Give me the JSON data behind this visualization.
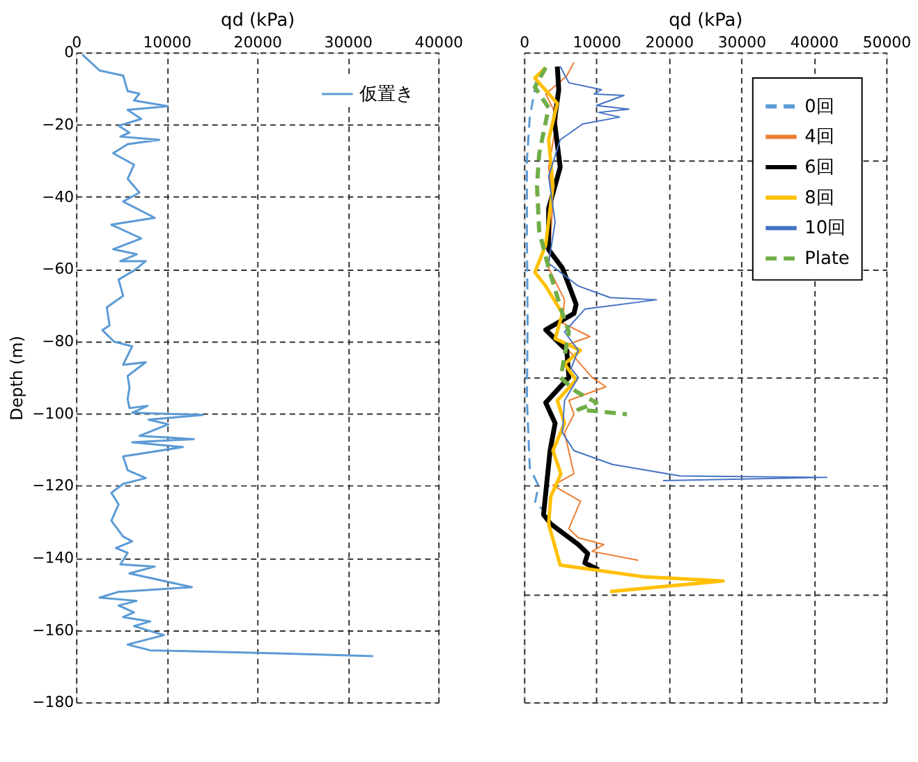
{
  "chart_data": [
    {
      "type": "line",
      "xlabel": "qd (kPa)",
      "ylabel": "Depth (m)",
      "xlim": [
        0,
        40000
      ],
      "xticks": [
        0,
        10000,
        20000,
        30000,
        40000
      ],
      "ylim": [
        -180,
        0
      ],
      "yticks": [
        -180,
        -160,
        -140,
        -120,
        -100,
        -80,
        -60,
        -40,
        -20,
        0
      ],
      "grid": true,
      "legend": "top right",
      "series": [
        {
          "name": "仮置き",
          "color": "#5b9bd5",
          "line_style": "solid",
          "x": [
            700,
            2600,
            5200,
            5700,
            7000,
            6400,
            10150,
            5700,
            7200,
            4700,
            5900,
            4900,
            9200,
            5700,
            4100,
            6400,
            5700,
            7000,
            5200,
            8700,
            3900,
            7200,
            4100,
            6700,
            4900,
            7700,
            6400,
            4700,
            5200,
            3400,
            3700,
            2900,
            4200,
            6200,
            5200,
            7700,
            5700,
            5900,
            5700,
            5900,
            7900,
            6200,
            14000,
            8000,
            10200,
            7000,
            13000,
            6200,
            11800,
            5200,
            5700,
            7700,
            5200,
            3900,
            4700,
            3900,
            5200,
            6200,
            4400,
            5700,
            4900,
            8700,
            5900,
            12800,
            4700,
            2600,
            6700,
            4700,
            6400,
            5200,
            8200,
            6400,
            9700,
            5700,
            8200,
            22900,
            32800
          ],
          "values": [
            -0.6,
            -5,
            -6.4,
            -10.7,
            -11.4,
            -13.3,
            -14.9,
            -15.9,
            -18.4,
            -20.3,
            -22.2,
            -23.3,
            -24.2,
            -25.4,
            -27.9,
            -31.1,
            -35,
            -38.8,
            -41.3,
            -45.8,
            -47.7,
            -51.5,
            -54.5,
            -55.9,
            -57.8,
            -57.8,
            -60.4,
            -62.9,
            -67.4,
            -70.6,
            -75.6,
            -76.9,
            -80.1,
            -81.4,
            -86.5,
            -85.8,
            -89.6,
            -92.8,
            -96,
            -98.5,
            -97.9,
            -99.8,
            -100.4,
            -101.7,
            -103,
            -106.2,
            -107.1,
            -108,
            -109.3,
            -111.9,
            -115.7,
            -117.9,
            -119.5,
            -122,
            -125.2,
            -129.7,
            -134.1,
            -135.4,
            -137.3,
            -138.6,
            -141.8,
            -142.4,
            -144.3,
            -148.1,
            -149.4,
            -151,
            -151.9,
            -153.2,
            -155.1,
            -156.4,
            -157.6,
            -158.9,
            -161.4,
            -164,
            -165.6,
            -166.5,
            -167.2
          ]
        }
      ]
    },
    {
      "type": "line",
      "xlabel": "qd (kPa)",
      "xlim": [
        0,
        50000
      ],
      "xticks": [
        0,
        10000,
        20000,
        30000,
        40000,
        50000
      ],
      "ylim": [
        -180,
        0
      ],
      "yticks": [
        -180,
        -150,
        -120,
        -90,
        -60,
        -30,
        0
      ],
      "tick_labels": "x",
      "grid": true,
      "legend": "top right",
      "series": [
        {
          "name": "0回",
          "color": "#5b9bd5",
          "line_style": "dashed",
          "x": [
            1700,
            800,
            400,
            400,
            500,
            400,
            800,
            2000,
            1500,
            3000
          ],
          "values": [
            -8,
            -18,
            -30,
            -50,
            -75,
            -96,
            -115,
            -120,
            -125,
            -127
          ]
        },
        {
          "name": "4回",
          "color": "#ed7d31",
          "line_style": "solid",
          "x": [
            6900,
            5900,
            3000,
            4600,
            3400,
            4000,
            3400,
            5600,
            5300,
            9100,
            5600,
            9400,
            11300,
            6200,
            6900,
            5600,
            6900,
            4000,
            7800,
            6200,
            7500,
            11000,
            9400,
            15800
          ],
          "values": [
            -2.7,
            -6.5,
            -11.5,
            -17.9,
            -31.8,
            -40.7,
            -59.7,
            -68.5,
            -74.9,
            -78.7,
            -81.2,
            -90,
            -92.6,
            -96.4,
            -100.2,
            -105.3,
            -116.7,
            -119.9,
            -124.3,
            -131.9,
            -134.4,
            -136.3,
            -138.2,
            -140.7
          ]
        },
        {
          "name": "6回",
          "color": "#000000",
          "line_style": "solid",
          "x": [
            4600,
            4800,
            4200,
            5000,
            3400,
            3400,
            5300,
            7200,
            6900,
            3000,
            5900,
            6200,
            3000,
            4300,
            3600,
            2700,
            3700,
            7500,
            8800,
            8400,
            10300
          ],
          "values": [
            -3.9,
            -10.3,
            -19,
            -31.8,
            -43.2,
            -54.6,
            -59.7,
            -69.8,
            -72.3,
            -76.8,
            -82.5,
            -90,
            -97,
            -102.7,
            -110.3,
            -128,
            -130.6,
            -136.3,
            -138.8,
            -141.4,
            -143.3
          ]
        },
        {
          "name": "8回",
          "color": "#ffc000",
          "line_style": "solid",
          "x": [
            3000,
            1500,
            4600,
            3400,
            4000,
            3000,
            1500,
            3000,
            5300,
            4300,
            7800,
            5600,
            7200,
            4600,
            5600,
            4000,
            5100,
            3700,
            3400,
            5000,
            16400,
            27500,
            11900
          ],
          "values": [
            -4.2,
            -7.1,
            -14.1,
            -24.2,
            -36.9,
            -53.3,
            -60.9,
            -64.7,
            -72.3,
            -79.3,
            -82.5,
            -86.3,
            -90.7,
            -96.4,
            -102.7,
            -110.3,
            -116.7,
            -123,
            -130.6,
            -142,
            -145.2,
            -146.4,
            -149.3
          ]
        },
        {
          "name": "10回",
          "color": "#4472c4",
          "line_style": "solid",
          "x": [
            5000,
            6200,
            10700,
            9700,
            13800,
            10000,
            14500,
            10300,
            13200,
            8100,
            5000,
            3400,
            4300,
            3400,
            7500,
            11900,
            18300,
            8400,
            5600,
            7500,
            6500,
            7500,
            5600,
            5300,
            6900,
            12200,
            21500,
            41800,
            19200
          ],
          "values": [
            -3.9,
            -8.4,
            -10.3,
            -11.5,
            -11.9,
            -14.7,
            -15.7,
            -16.6,
            -17.9,
            -19.8,
            -24.2,
            -34.3,
            -47,
            -58.4,
            -64.7,
            -67.9,
            -68.5,
            -71.1,
            -77.4,
            -82.5,
            -87.5,
            -90,
            -96.4,
            -105.3,
            -110.3,
            -114.1,
            -117.3,
            -117.7,
            -118.6
          ]
        },
        {
          "name": "Plate",
          "color": "#70ad47",
          "line_style": "dashed",
          "x": [
            3000,
            1500,
            3400,
            2100,
            1800,
            2100,
            3400,
            5300,
            6200,
            5300,
            5000,
            7200,
            10000,
            7500,
            14200
          ],
          "values": [
            -4.2,
            -9.6,
            -15.3,
            -28,
            -36.9,
            -49.5,
            -59.7,
            -72.3,
            -77.4,
            -87.5,
            -90,
            -93.9,
            -97,
            -98.9,
            -100.2
          ]
        }
      ]
    }
  ]
}
